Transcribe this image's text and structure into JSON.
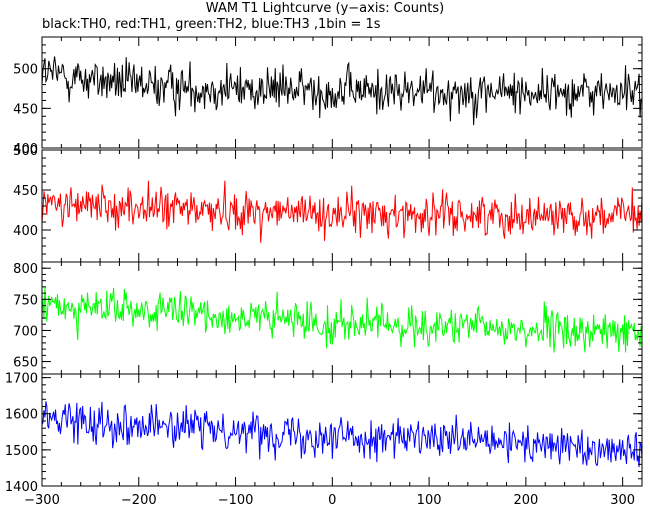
{
  "title": "WAM T1 Lightcurve (y−axis: Counts)",
  "subtitle": "black:TH0, red:TH1, green:TH2, blue:TH3 ,1bin = 1s",
  "chart_data": {
    "type": "line",
    "x_range": [
      -300,
      320
    ],
    "x_ticks": [
      -300,
      -200,
      -100,
      0,
      100,
      200,
      300
    ],
    "x_tick_labels": [
      "−300",
      "−200",
      "−100",
      "0",
      "100",
      "200",
      "300"
    ],
    "panels": [
      {
        "name": "TH0",
        "color": "#000000",
        "ylim": [
          400,
          540
        ],
        "y_ticks": [
          400,
          450,
          500
        ],
        "y_tick_labels": [
          "400",
          "450",
          "500"
        ],
        "trend": [
          [
            -300,
            495
          ],
          [
            -200,
            478
          ],
          [
            0,
            472
          ],
          [
            320,
            470
          ]
        ],
        "noise_sd": 20
      },
      {
        "name": "TH1",
        "color": "#ff0000",
        "ylim": [
          360,
          500
        ],
        "y_ticks": [
          400,
          450,
          500
        ],
        "y_tick_labels": [
          "400",
          "450",
          "500"
        ],
        "trend": [
          [
            -300,
            432
          ],
          [
            -200,
            428
          ],
          [
            0,
            420
          ],
          [
            320,
            418
          ]
        ],
        "noise_sd": 18
      },
      {
        "name": "TH2",
        "color": "#00ff00",
        "ylim": [
          630,
          810
        ],
        "y_ticks": [
          650,
          700,
          750,
          800
        ],
        "y_tick_labels": [
          "650",
          "700",
          "750",
          "800"
        ],
        "trend": [
          [
            -300,
            740
          ],
          [
            -200,
            732
          ],
          [
            0,
            712
          ],
          [
            320,
            695
          ]
        ],
        "noise_sd": 22
      },
      {
        "name": "TH3",
        "color": "#0000ff",
        "ylim": [
          1400,
          1710
        ],
        "y_ticks": [
          1400,
          1500,
          1600,
          1700
        ],
        "y_tick_labels": [
          "1400",
          "1500",
          "1600",
          "1700"
        ],
        "trend": [
          [
            -300,
            1590
          ],
          [
            -200,
            1570
          ],
          [
            0,
            1540
          ],
          [
            320,
            1500
          ]
        ],
        "noise_sd": 38
      }
    ]
  }
}
